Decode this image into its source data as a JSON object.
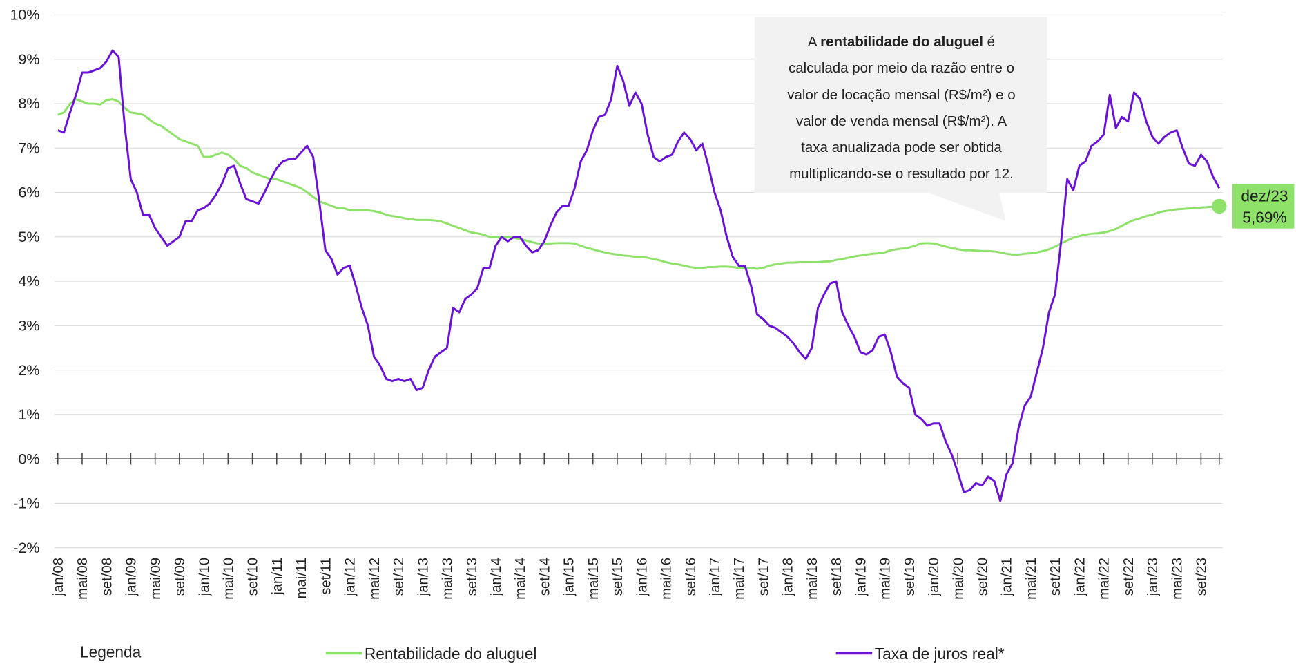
{
  "chart_data": {
    "type": "line",
    "legend_title": "Legenda",
    "categories": [
      "jan/08",
      null,
      null,
      null,
      "mai/08",
      null,
      null,
      null,
      "set/08",
      null,
      null,
      null,
      "jan/09",
      null,
      null,
      null,
      "mai/09",
      null,
      null,
      null,
      "set/09",
      null,
      null,
      null,
      "jan/10",
      null,
      null,
      null,
      "mai/10",
      null,
      null,
      null,
      "set/10",
      null,
      null,
      null,
      "jan/11",
      null,
      null,
      null,
      "mai/11",
      null,
      null,
      null,
      "set/11",
      null,
      null,
      null,
      "jan/12",
      null,
      null,
      null,
      "mai/12",
      null,
      null,
      null,
      "set/12",
      null,
      null,
      null,
      "jan/13",
      null,
      null,
      null,
      "mai/13",
      null,
      null,
      null,
      "set/13",
      null,
      null,
      null,
      "jan/14",
      null,
      null,
      null,
      "mai/14",
      null,
      null,
      null,
      "set/14",
      null,
      null,
      null,
      "jan/15",
      null,
      null,
      null,
      "mai/15",
      null,
      null,
      null,
      "set/15",
      null,
      null,
      null,
      "jan/16",
      null,
      null,
      null,
      "mai/16",
      null,
      null,
      null,
      "set/16",
      null,
      null,
      null,
      "jan/17",
      null,
      null,
      null,
      "mai/17",
      null,
      null,
      null,
      "set/17",
      null,
      null,
      null,
      "jan/18",
      null,
      null,
      null,
      "mai/18",
      null,
      null,
      null,
      "set/18",
      null,
      null,
      null,
      "jan/19",
      null,
      null,
      null,
      "mai/19",
      null,
      null,
      null,
      "set/19",
      null,
      null,
      null,
      "jan/20",
      null,
      null,
      null,
      "mai/20",
      null,
      null,
      null,
      "set/20",
      null,
      null,
      null,
      "jan/21",
      null,
      null,
      null,
      "mai/21",
      null,
      null,
      null,
      "set/21",
      null,
      null,
      null,
      "jan/22",
      null,
      null,
      null,
      "mai/22",
      null,
      null,
      null,
      "set/22",
      null,
      null,
      null,
      "jan/23",
      null,
      null,
      null,
      "mai/23",
      null,
      null,
      null,
      "set/23",
      null,
      null,
      null
    ],
    "series": [
      {
        "name": "Rentabilidade do aluguel",
        "color": "#8ee26a",
        "values": [
          7.75,
          7.8,
          8.0,
          8.1,
          8.05,
          8.0,
          8.0,
          7.98,
          8.08,
          8.1,
          8.05,
          7.9,
          7.8,
          7.78,
          7.75,
          7.65,
          7.55,
          7.5,
          7.4,
          7.3,
          7.2,
          7.15,
          7.1,
          7.05,
          6.8,
          6.8,
          6.85,
          6.9,
          6.85,
          6.75,
          6.6,
          6.55,
          6.45,
          6.4,
          6.35,
          6.3,
          6.3,
          6.25,
          6.2,
          6.15,
          6.1,
          6.0,
          5.9,
          5.8,
          5.75,
          5.7,
          5.65,
          5.65,
          5.6,
          5.6,
          5.6,
          5.6,
          5.58,
          5.55,
          5.5,
          5.47,
          5.45,
          5.42,
          5.4,
          5.38,
          5.38,
          5.38,
          5.37,
          5.35,
          5.3,
          5.25,
          5.2,
          5.15,
          5.1,
          5.08,
          5.05,
          5.0,
          5.0,
          5.0,
          5.0,
          4.98,
          4.95,
          4.92,
          4.88,
          4.85,
          4.84,
          4.85,
          4.86,
          4.86,
          4.86,
          4.85,
          4.8,
          4.75,
          4.72,
          4.68,
          4.65,
          4.62,
          4.6,
          4.58,
          4.57,
          4.55,
          4.55,
          4.53,
          4.5,
          4.47,
          4.43,
          4.4,
          4.38,
          4.35,
          4.32,
          4.3,
          4.3,
          4.32,
          4.32,
          4.33,
          4.33,
          4.32,
          4.3,
          4.3,
          4.3,
          4.28,
          4.3,
          4.35,
          4.38,
          4.4,
          4.42,
          4.42,
          4.43,
          4.43,
          4.43,
          4.43,
          4.44,
          4.45,
          4.48,
          4.5,
          4.53,
          4.56,
          4.58,
          4.6,
          4.62,
          4.63,
          4.65,
          4.7,
          4.72,
          4.74,
          4.76,
          4.8,
          4.85,
          4.86,
          4.85,
          4.82,
          4.78,
          4.75,
          4.72,
          4.7,
          4.7,
          4.69,
          4.68,
          4.68,
          4.67,
          4.65,
          4.62,
          4.6,
          4.6,
          4.62,
          4.63,
          4.65,
          4.68,
          4.72,
          4.78,
          4.85,
          4.92,
          4.98,
          5.02,
          5.05,
          5.07,
          5.08,
          5.1,
          5.13,
          5.18,
          5.25,
          5.32,
          5.38,
          5.42,
          5.47,
          5.5,
          5.55,
          5.58,
          5.6,
          5.62,
          5.63,
          5.64,
          5.65,
          5.66,
          5.67,
          5.68,
          5.69
        ]
      },
      {
        "name": "Taxa de juros real*",
        "color": "#6a12d8",
        "values": [
          7.4,
          7.35,
          7.8,
          8.2,
          8.7,
          8.7,
          8.75,
          8.8,
          8.95,
          9.2,
          9.05,
          7.5,
          6.3,
          6.0,
          5.5,
          5.5,
          5.2,
          5.0,
          4.8,
          4.9,
          5.0,
          5.35,
          5.35,
          5.6,
          5.65,
          5.75,
          5.95,
          6.2,
          6.55,
          6.6,
          6.2,
          5.85,
          5.8,
          5.75,
          6.0,
          6.3,
          6.55,
          6.7,
          6.75,
          6.75,
          6.9,
          7.05,
          6.8,
          5.8,
          4.7,
          4.5,
          4.15,
          4.3,
          4.35,
          3.9,
          3.4,
          3.0,
          2.3,
          2.1,
          1.8,
          1.75,
          1.8,
          1.75,
          1.8,
          1.55,
          1.6,
          2.0,
          2.3,
          2.4,
          2.5,
          3.4,
          3.3,
          3.6,
          3.7,
          3.85,
          4.3,
          4.3,
          4.8,
          5.0,
          4.9,
          5.0,
          5.0,
          4.8,
          4.65,
          4.7,
          4.9,
          5.25,
          5.55,
          5.7,
          5.7,
          6.1,
          6.7,
          6.95,
          7.4,
          7.7,
          7.75,
          8.1,
          8.85,
          8.5,
          7.95,
          8.25,
          8.0,
          7.3,
          6.8,
          6.7,
          6.8,
          6.85,
          7.15,
          7.35,
          7.2,
          6.95,
          7.1,
          6.6,
          6.0,
          5.6,
          5.0,
          4.55,
          4.35,
          4.35,
          3.9,
          3.25,
          3.15,
          3.0,
          2.95,
          2.85,
          2.75,
          2.6,
          2.4,
          2.25,
          2.5,
          3.4,
          3.7,
          3.95,
          4.0,
          3.3,
          3.0,
          2.75,
          2.4,
          2.35,
          2.45,
          2.75,
          2.8,
          2.4,
          1.85,
          1.7,
          1.6,
          1.0,
          0.9,
          0.75,
          0.8,
          0.8,
          0.4,
          0.1,
          -0.3,
          -0.75,
          -0.7,
          -0.55,
          -0.6,
          -0.4,
          -0.5,
          -0.95,
          -0.35,
          -0.1,
          0.7,
          1.2,
          1.4,
          1.95,
          2.5,
          3.3,
          3.7,
          4.9,
          6.3,
          6.05,
          6.6,
          6.7,
          7.05,
          7.15,
          7.3,
          8.2,
          7.45,
          7.7,
          7.6,
          8.25,
          8.1,
          7.6,
          7.25,
          7.1,
          7.25,
          7.35,
          7.4,
          7.0,
          6.65,
          6.6,
          6.85,
          6.7,
          6.35,
          6.1
        ]
      }
    ],
    "end_label": {
      "text": "dez/23",
      "value_label": "5,69%",
      "color": "#8ee26a"
    },
    "ylim": [
      -2,
      10
    ],
    "yticks": [
      {
        "value": -2,
        "label": "-2%"
      },
      {
        "value": -1,
        "label": "-1%"
      },
      {
        "value": 0,
        "label": "0%"
      },
      {
        "value": 1,
        "label": "1%"
      },
      {
        "value": 2,
        "label": "2%"
      },
      {
        "value": 3,
        "label": "3%"
      },
      {
        "value": 4,
        "label": "4%"
      },
      {
        "value": 5,
        "label": "5%"
      },
      {
        "value": 6,
        "label": "6%"
      },
      {
        "value": 7,
        "label": "7%"
      },
      {
        "value": 8,
        "label": "8%"
      },
      {
        "value": 9,
        "label": "9%"
      },
      {
        "value": 10,
        "label": "10%"
      }
    ],
    "grid": true,
    "annotation": {
      "first_line": [
        "A",
        "rentabilidade do aluguel",
        "é"
      ],
      "lines": [
        "calculada por meio da razão entre o",
        "valor de locação mensal (R$/m²) e o",
        "valor de venda mensal (R$/m²).  A",
        "taxa anualizada pode ser obtida",
        "multiplicando-se  o resultado por 12."
      ]
    }
  }
}
